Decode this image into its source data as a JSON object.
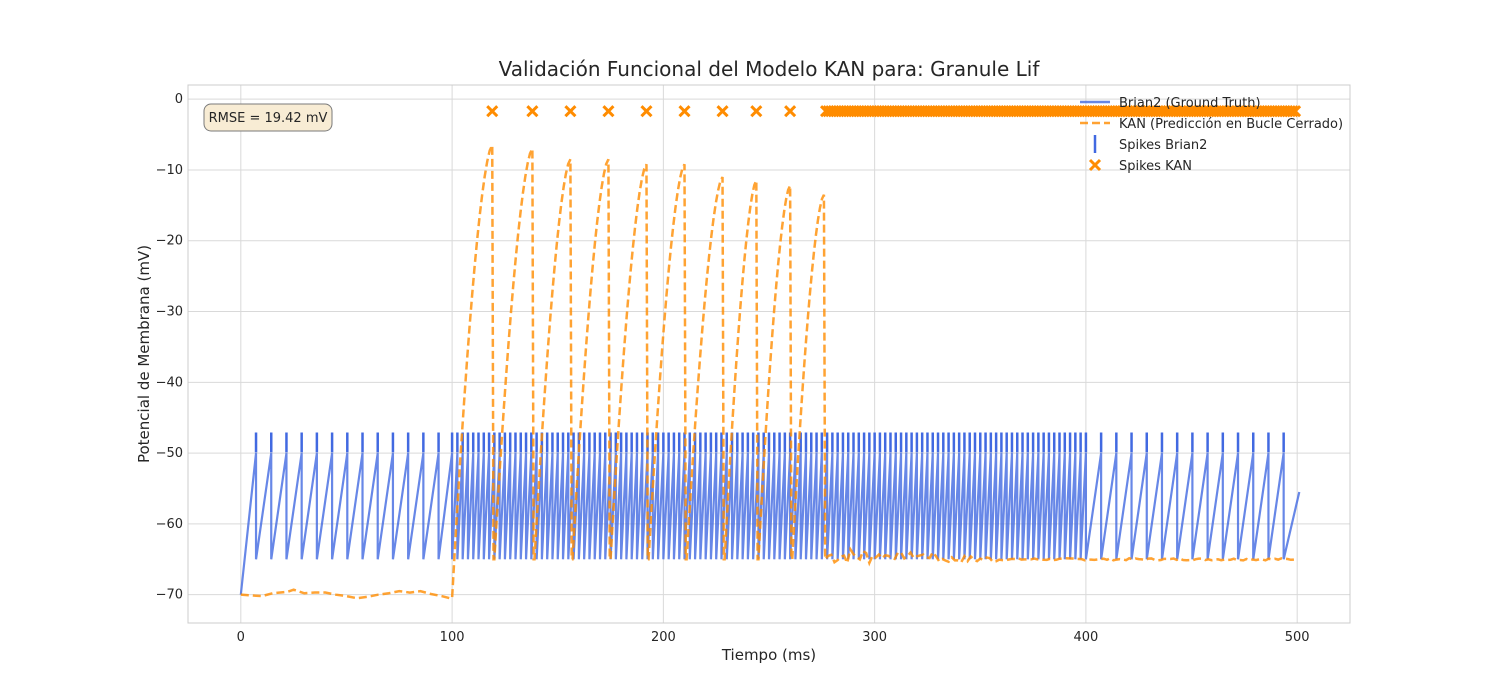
{
  "chart_data": {
    "type": "line",
    "title": "Validación Funcional del Modelo KAN para: Granule Lif",
    "xlabel": "Tiempo (ms)",
    "ylabel": "Potencial de Membrana (mV)",
    "xlim": [
      -25,
      525
    ],
    "ylim": [
      -74,
      2
    ],
    "xticks": [
      0,
      100,
      200,
      300,
      400,
      500
    ],
    "yticks": [
      0,
      -10,
      -20,
      -30,
      -40,
      -50,
      -60,
      -70
    ],
    "grid": true,
    "legend_position": "top-right",
    "annotation": {
      "text": "RMSE = 19.42 mV",
      "position": "top-left"
    },
    "colors": {
      "brian2": "#4169e1",
      "kan": "#ff8c00"
    },
    "series": [
      {
        "name": "Brian2 (Ground Truth)",
        "style": "solid",
        "description": "leaky integrate-and-fire trace: reset -65 mV, threshold -50 mV",
        "spike_times": [
          7.2,
          14.4,
          21.6,
          28.8,
          36.0,
          43.2,
          50.4,
          57.6,
          64.8,
          72.0,
          79.2,
          86.4,
          93.6,
          100.0,
          102.5,
          105.0,
          107.5,
          110.0,
          112.5,
          115.0,
          117.5,
          120.0,
          122.5,
          125.0,
          127.5,
          130.0,
          132.5,
          135.0,
          137.5,
          140.0,
          142.5,
          145.0,
          147.5,
          150.0,
          152.5,
          155.0,
          157.5,
          160.0,
          162.5,
          165.0,
          167.5,
          170.0,
          172.5,
          175.0,
          177.5,
          180.0,
          182.5,
          185.0,
          187.5,
          190.0,
          192.5,
          195.0,
          197.5,
          200.0,
          202.5,
          205.0,
          207.5,
          210.0,
          212.5,
          215.0,
          217.5,
          220.0,
          222.5,
          225.0,
          227.5,
          230.0,
          232.5,
          235.0,
          237.5,
          240.0,
          242.5,
          245.0,
          247.5,
          250.0,
          252.5,
          255.0,
          257.5,
          260.0,
          262.5,
          265.0,
          267.5,
          270.0,
          272.5,
          275.0,
          277.5,
          280.0,
          282.5,
          285.0,
          287.5,
          290.0,
          292.5,
          295.0,
          297.5,
          300.0,
          302.5,
          305.0,
          307.5,
          310.0,
          312.5,
          315.0,
          317.5,
          320.0,
          322.5,
          325.0,
          327.5,
          330.0,
          332.5,
          335.0,
          337.5,
          340.0,
          342.5,
          345.0,
          347.5,
          350.0,
          352.5,
          355.0,
          357.5,
          360.0,
          362.5,
          365.0,
          367.5,
          370.0,
          372.5,
          375.0,
          377.5,
          380.0,
          382.5,
          385.0,
          387.5,
          390.0,
          392.5,
          395.0,
          397.5,
          400.0,
          407.2,
          414.4,
          421.6,
          428.8,
          436.0,
          443.2,
          450.4,
          457.6,
          464.8,
          472.0,
          479.2,
          486.4,
          493.6
        ],
        "spike_marker_y": -48.5
      },
      {
        "name": "KAN (Predicción en Bucle Cerrado)",
        "style": "dashed",
        "description": "baseline ~-70 mV until 100 ms; closed-loop rise/reset cycles 100–277 ms; then ~-64.5 mV with small noise, settling to -65 mV",
        "baseline_wave": [
          [
            0,
            -70.0
          ],
          [
            10,
            -70.2
          ],
          [
            15,
            -69.8
          ],
          [
            22,
            -69.6
          ],
          [
            25,
            -69.3
          ],
          [
            30,
            -69.8
          ],
          [
            35,
            -69.7
          ],
          [
            40,
            -69.7
          ],
          [
            45,
            -70.0
          ],
          [
            50,
            -70.2
          ],
          [
            55,
            -70.5
          ],
          [
            60,
            -70.3
          ],
          [
            65,
            -70.0
          ],
          [
            70,
            -69.8
          ],
          [
            75,
            -69.5
          ],
          [
            80,
            -69.7
          ],
          [
            85,
            -69.5
          ],
          [
            90,
            -69.9
          ],
          [
            95,
            -70.2
          ],
          [
            99,
            -70.5
          ]
        ],
        "cycles": [
          {
            "start": 100,
            "peak_t": 119,
            "peak_v": -6.5
          },
          {
            "start": 120,
            "peak_t": 138,
            "peak_v": -7
          },
          {
            "start": 139,
            "peak_t": 156,
            "peak_v": -8.5
          },
          {
            "start": 157,
            "peak_t": 174,
            "peak_v": -8.5
          },
          {
            "start": 175,
            "peak_t": 192,
            "peak_v": -9.2
          },
          {
            "start": 193,
            "peak_t": 210,
            "peak_v": -9.2
          },
          {
            "start": 211,
            "peak_t": 228,
            "peak_v": -11
          },
          {
            "start": 229,
            "peak_t": 244,
            "peak_v": -11.5
          },
          {
            "start": 245,
            "peak_t": 260,
            "peak_v": -12.2
          },
          {
            "start": 261,
            "peak_t": 276,
            "peak_v": -13.5
          }
        ],
        "reset_v": -65,
        "tail_v": -64.5,
        "end_t": 500
      },
      {
        "name": "Spikes Brian2",
        "marker": "|",
        "y": -48.5,
        "source": "Brian2 spike_times"
      },
      {
        "name": "Spikes KAN",
        "marker": "x",
        "y": -1.7,
        "x": [
          119,
          138,
          156,
          174,
          192,
          210,
          228,
          244,
          260
        ],
        "dense_range": [
          277,
          500
        ],
        "dense_step": 1.2
      }
    ]
  }
}
